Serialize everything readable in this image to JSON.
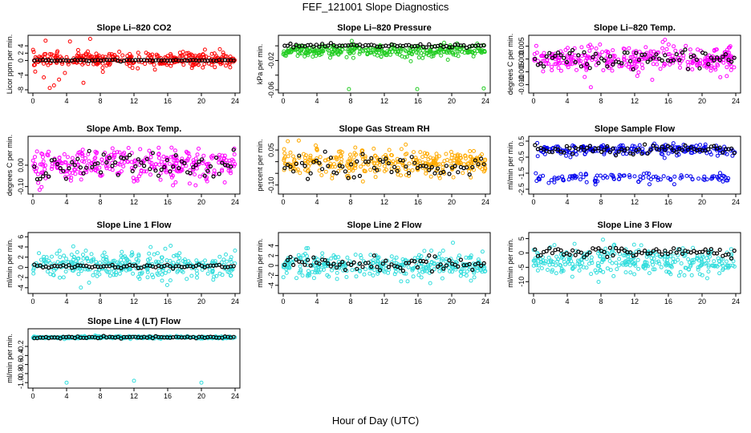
{
  "figure": {
    "title": "FEF_121001  Slope Diagnostics",
    "xlabel": "Hour of Day (UTC)"
  },
  "chart_data": [
    {
      "type": "scatter",
      "title": "Slope Li–820 CO2",
      "ylabel": "Licor ppm per min.",
      "xlim": [
        0,
        24
      ],
      "x_ticks": [
        0,
        4,
        8,
        12,
        16,
        20,
        24
      ],
      "ylim": [
        -8,
        6
      ],
      "y_ticks": [
        -8,
        -4,
        0,
        2,
        4
      ],
      "y_tick_labels": [
        "-8",
        "-4",
        "0",
        "2",
        "4"
      ],
      "color": "#ff0000",
      "center": 0.3,
      "spread": 1.6,
      "band2": null,
      "outliers": [
        [
          1.5,
          5.4
        ],
        [
          4.4,
          5.2
        ],
        [
          6.8,
          5.9
        ],
        [
          1.3,
          -4.6
        ],
        [
          2.0,
          -7.5
        ],
        [
          2.5,
          -6.8
        ],
        [
          3.1,
          -5.2
        ],
        [
          6.0,
          -6.1
        ],
        [
          3.8,
          -3.4
        ],
        [
          8.3,
          -3.1
        ]
      ],
      "black_center": 0.05,
      "black_spread": 0.15
    },
    {
      "type": "scatter",
      "title": "Slope Li–820 Pressure",
      "ylabel": "kPa per min.",
      "xlim": [
        0,
        24
      ],
      "x_ticks": [
        0,
        4,
        8,
        12,
        16,
        20,
        24
      ],
      "ylim": [
        -0.06,
        0.01
      ],
      "y_ticks": [
        -0.06,
        -0.04,
        -0.02,
        0.0
      ],
      "y_tick_labels": [
        "-0.06",
        "",
        "-0.02",
        ""
      ],
      "color": "#22cc22",
      "center": -0.007,
      "spread": 0.007,
      "band2": null,
      "outliers": [
        [
          7.8,
          -0.059
        ],
        [
          15.9,
          -0.059
        ],
        [
          23.8,
          -0.058
        ]
      ],
      "black_center": 0.0,
      "black_spread": 0.002
    },
    {
      "type": "scatter",
      "title": "Slope Li–820 Temp.",
      "ylabel": "degrees C per min.",
      "xlim": [
        0,
        24
      ],
      "x_ticks": [
        0,
        4,
        8,
        12,
        16,
        20,
        24
      ],
      "ylim": [
        -0.012,
        0.008
      ],
      "y_ticks": [
        -0.01,
        -0.005,
        0.0,
        0.005
      ],
      "y_tick_labels": [
        "-0.010",
        "-0.005",
        "0.000",
        "0.005"
      ],
      "color": "#ff00ff",
      "center": 0.0,
      "spread": 0.004,
      "band2": null,
      "outliers": [
        [
          6.8,
          -0.011
        ],
        [
          15.6,
          0.0075
        ]
      ],
      "black_center": 0.0,
      "black_spread": 0.003
    },
    {
      "type": "scatter",
      "title": "Slope Amb. Box Temp.",
      "ylabel": "degrees C per min.",
      "xlim": [
        0,
        24
      ],
      "x_ticks": [
        0,
        4,
        8,
        12,
        16,
        20,
        24
      ],
      "ylim": [
        -0.12,
        0.12
      ],
      "y_ticks": [
        -0.1,
        0.0
      ],
      "y_tick_labels": [
        "-0.10",
        "0.00"
      ],
      "color": "#ff00ff",
      "center": 0.0,
      "spread": 0.06,
      "band2": null,
      "outliers": [],
      "black_center": 0.0,
      "black_spread": 0.05
    },
    {
      "type": "scatter",
      "title": "Slope Gas Stream RH",
      "ylabel": "percent per min.",
      "xlim": [
        0,
        24
      ],
      "x_ticks": [
        0,
        4,
        8,
        12,
        16,
        20,
        24
      ],
      "ylim": [
        -0.125,
        0.095
      ],
      "y_ticks": [
        -0.1,
        -0.05,
        0.0,
        0.05
      ],
      "y_tick_labels": [
        "-0.10",
        "",
        "",
        "0.05"
      ],
      "color": "#ffaa00",
      "center": 0.0,
      "spread": 0.045,
      "band2": null,
      "outliers": [],
      "black_center": -0.02,
      "black_spread": 0.04
    },
    {
      "type": "scatter",
      "title": "Slope Sample Flow",
      "ylabel": "ml/min per min.",
      "xlim": [
        0,
        24
      ],
      "x_ticks": [
        0,
        4,
        8,
        12,
        16,
        20,
        24
      ],
      "ylim": [
        -2.6,
        0.6
      ],
      "y_ticks": [
        -2.5,
        -1.5,
        -0.5,
        0.5
      ],
      "y_tick_labels": [
        "-2.5",
        "-1.5",
        "-0.5",
        "0.5"
      ],
      "color": "#0000ee",
      "center": -0.05,
      "spread": 0.25,
      "band2": [
        -1.8,
        0.3
      ],
      "outliers": [],
      "black_center": 0.0,
      "black_spread": 0.25
    },
    {
      "type": "scatter",
      "title": "Slope Line 1 Flow",
      "ylabel": "ml/min per min.",
      "xlim": [
        0,
        24
      ],
      "x_ticks": [
        0,
        4,
        8,
        12,
        16,
        20,
        24
      ],
      "ylim": [
        -4.5,
        6.2
      ],
      "y_ticks": [
        -4,
        -2,
        0,
        2,
        4,
        6
      ],
      "y_tick_labels": [
        "-4",
        "-2",
        "0",
        "2",
        "4",
        "6"
      ],
      "color": "#33dddd",
      "center": 0.5,
      "spread": 2.2,
      "band2": null,
      "outliers": [],
      "black_center": 0.2,
      "black_spread": 0.3
    },
    {
      "type": "scatter",
      "title": "Slope Line 2 Flow",
      "ylabel": "ml/min per min.",
      "xlim": [
        0,
        24
      ],
      "x_ticks": [
        0,
        4,
        8,
        12,
        16,
        20,
        24
      ],
      "ylim": [
        -5,
        6
      ],
      "y_ticks": [
        -4,
        -2,
        0,
        2,
        4
      ],
      "y_tick_labels": [
        "-4",
        "-2",
        "0",
        "2",
        "4"
      ],
      "color": "#33dddd",
      "center": 0.0,
      "spread": 2.0,
      "band2": null,
      "outliers": [],
      "black_center": 0.3,
      "black_spread": 1.2
    },
    {
      "type": "scatter",
      "title": "Slope Line 3 Flow",
      "ylabel": "ml/min per min.",
      "xlim": [
        0,
        24
      ],
      "x_ticks": [
        0,
        4,
        8,
        12,
        16,
        20,
        24
      ],
      "ylim": [
        -13,
        6
      ],
      "y_ticks": [
        -10,
        -5,
        0,
        5
      ],
      "y_tick_labels": [
        "-10",
        "-5",
        "0",
        "5"
      ],
      "color": "#33dddd",
      "center": -3,
      "spread": 4.0,
      "band2": null,
      "outliers": [],
      "black_center": 0.3,
      "black_spread": 1.5
    },
    {
      "type": "scatter",
      "title": "Slope Line 4 (LT) Flow",
      "ylabel": "ml/min per min.",
      "xlim": [
        0,
        24
      ],
      "x_ticks": [
        0,
        4,
        8,
        12,
        16,
        20,
        24
      ],
      "ylim": [
        -1.05,
        0.12
      ],
      "y_ticks": [
        -1.0,
        -0.8,
        -0.6,
        -0.4,
        -0.2
      ],
      "y_tick_labels": [
        "-1.0",
        "-0.8",
        "-0.6",
        "-0.4",
        "-0.2"
      ],
      "color": "#33dddd",
      "center": 0.0,
      "spread": 0.02,
      "band2": null,
      "outliers": [
        [
          4.0,
          -1.0
        ],
        [
          12.0,
          -0.96
        ],
        [
          20.0,
          -1.0
        ]
      ],
      "black_center": 0.0,
      "black_spread": 0.02
    }
  ]
}
